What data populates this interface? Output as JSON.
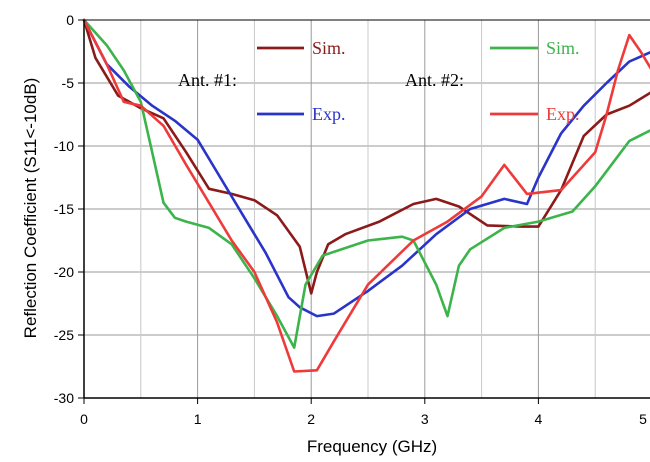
{
  "chart_data": {
    "type": "line",
    "title": "",
    "xlabel": "Frequency (GHz)",
    "ylabel": "Reflection Coefficient (S11<-10dB)",
    "xlim": [
      0,
      5
    ],
    "ylim": [
      -30,
      0
    ],
    "xticks": [
      "0",
      "1",
      "2",
      "3",
      "4",
      "5"
    ],
    "yticks": [
      "0",
      "-5",
      "-10",
      "-15",
      "-20",
      "-25",
      "-30"
    ],
    "grid": true,
    "legend_groups": [
      {
        "label": "Ant. #1:",
        "entries": [
          "Sim.",
          "Exp."
        ]
      },
      {
        "label": "Ant. #2:",
        "entries": [
          "Sim.",
          "Exp."
        ]
      }
    ],
    "series": [
      {
        "name": "Sim.",
        "group": "Ant. #1:",
        "color": "#8b1a1a",
        "x": [
          0,
          0.1,
          0.3,
          0.5,
          0.7,
          0.9,
          1.1,
          1.3,
          1.5,
          1.7,
          1.9,
          2.0,
          2.05,
          2.15,
          2.3,
          2.6,
          2.9,
          3.1,
          3.3,
          3.55,
          3.85,
          4.0,
          4.2,
          4.4,
          4.6,
          4.8,
          5.0
        ],
        "y": [
          0,
          -3,
          -6,
          -7,
          -7.8,
          -10.5,
          -13.4,
          -13.8,
          -14.3,
          -15.5,
          -18,
          -21.7,
          -20,
          -17.8,
          -17,
          -16,
          -14.6,
          -14.2,
          -14.8,
          -16.3,
          -16.4,
          -16.4,
          -13.5,
          -9.2,
          -7.5,
          -6.8,
          -5.7
        ]
      },
      {
        "name": "Exp.",
        "group": "Ant. #1:",
        "color": "#2a34c8",
        "x": [
          0,
          0.2,
          0.4,
          0.6,
          0.8,
          1.0,
          1.2,
          1.4,
          1.6,
          1.8,
          1.9,
          2.05,
          2.2,
          2.5,
          2.8,
          3.1,
          3.4,
          3.7,
          3.9,
          4.0,
          4.2,
          4.4,
          4.6,
          4.8,
          5.0
        ],
        "y": [
          0,
          -3.5,
          -5.3,
          -6.8,
          -8,
          -9.5,
          -12.5,
          -15.5,
          -18.5,
          -22,
          -22.8,
          -23.5,
          -23.3,
          -21.5,
          -19.5,
          -17,
          -15,
          -14.2,
          -14.6,
          -12.5,
          -9,
          -6.8,
          -5,
          -3.3,
          -2.5
        ]
      },
      {
        "name": "Sim.",
        "group": "Ant. #2:",
        "color": "#3cb44b",
        "x": [
          0,
          0.2,
          0.35,
          0.5,
          0.6,
          0.7,
          0.8,
          0.9,
          1.1,
          1.3,
          1.5,
          1.7,
          1.85,
          1.95,
          2.1,
          2.5,
          2.8,
          2.9,
          3.1,
          3.2,
          3.3,
          3.4,
          3.7,
          4.0,
          4.3,
          4.5,
          4.6,
          4.8,
          5.0
        ],
        "y": [
          0,
          -2,
          -4,
          -6.5,
          -10.5,
          -14.5,
          -15.7,
          -16,
          -16.5,
          -17.8,
          -20.5,
          -23.5,
          -26,
          -21,
          -18.7,
          -17.5,
          -17.2,
          -17.5,
          -21,
          -23.5,
          -19.5,
          -18.2,
          -16.5,
          -16,
          -15.2,
          -13.2,
          -12,
          -9.6,
          -8.7
        ]
      },
      {
        "name": "Exp.",
        "group": "Ant. #2:",
        "color": "#ee3a3a",
        "x": [
          0,
          0.2,
          0.35,
          0.5,
          0.7,
          0.9,
          1.1,
          1.3,
          1.5,
          1.7,
          1.85,
          2.05,
          2.2,
          2.5,
          2.9,
          3.2,
          3.5,
          3.7,
          3.9,
          4.2,
          4.5,
          4.6,
          4.7,
          4.8,
          4.9,
          5.0
        ],
        "y": [
          0,
          -3.5,
          -6.5,
          -6.8,
          -8.4,
          -11.5,
          -14.5,
          -17.5,
          -20,
          -24,
          -27.9,
          -27.8,
          -25.5,
          -21,
          -17.5,
          -16,
          -14,
          -11.5,
          -13.8,
          -13.5,
          -10.5,
          -7.5,
          -4,
          -1.2,
          -2.5,
          -4
        ]
      }
    ]
  }
}
